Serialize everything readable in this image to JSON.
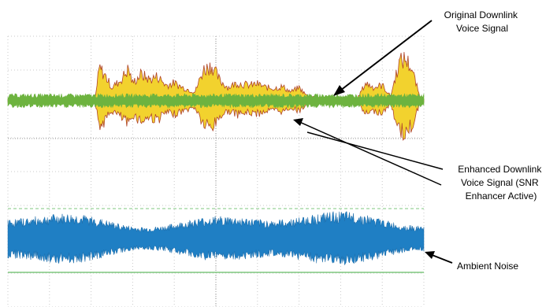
{
  "chart_data": {
    "type": "line",
    "title": "",
    "xlabel": "",
    "ylabel": "",
    "grid": true,
    "grid_divisions": {
      "x": 10,
      "y": 8
    },
    "annotations": [
      {
        "id": "orig",
        "lines": [
          "Original Downlink",
          "Voice Signal"
        ]
      },
      {
        "id": "enh",
        "lines": [
          "Enhanced Downlink",
          "Voice Signal (SNR",
          "Enhancer Active)"
        ]
      },
      {
        "id": "noise",
        "lines": [
          "Ambient Noise"
        ]
      }
    ],
    "series": [
      {
        "name": "Original Downlink Voice Signal",
        "color": "#f2d22e",
        "edge_color": "#b0452a",
        "envelope": [
          [
            0.0,
            0.03
          ],
          [
            0.1,
            0.04
          ],
          [
            0.21,
            0.06
          ],
          [
            0.22,
            0.75
          ],
          [
            0.235,
            0.55
          ],
          [
            0.25,
            0.3
          ],
          [
            0.27,
            0.45
          ],
          [
            0.29,
            0.72
          ],
          [
            0.3,
            0.4
          ],
          [
            0.32,
            0.6
          ],
          [
            0.34,
            0.48
          ],
          [
            0.36,
            0.55
          ],
          [
            0.38,
            0.35
          ],
          [
            0.4,
            0.4
          ],
          [
            0.42,
            0.3
          ],
          [
            0.45,
            0.2
          ],
          [
            0.47,
            0.7
          ],
          [
            0.49,
            0.8
          ],
          [
            0.51,
            0.45
          ],
          [
            0.53,
            0.3
          ],
          [
            0.55,
            0.4
          ],
          [
            0.58,
            0.35
          ],
          [
            0.6,
            0.38
          ],
          [
            0.62,
            0.3
          ],
          [
            0.64,
            0.28
          ],
          [
            0.66,
            0.32
          ],
          [
            0.68,
            0.2
          ],
          [
            0.7,
            0.3
          ],
          [
            0.72,
            0.1
          ],
          [
            0.8,
            0.05
          ],
          [
            0.84,
            0.05
          ],
          [
            0.86,
            0.4
          ],
          [
            0.88,
            0.3
          ],
          [
            0.9,
            0.35
          ],
          [
            0.92,
            0.1
          ],
          [
            0.94,
            0.85
          ],
          [
            0.955,
            0.95
          ],
          [
            0.97,
            0.75
          ],
          [
            0.99,
            0.1
          ],
          [
            1.0,
            0.05
          ]
        ]
      },
      {
        "name": "Enhanced Downlink Voice Signal (SNR Enhancer Active)",
        "color": "#6db33f",
        "amplitude": 0.13
      },
      {
        "name": "Ambient Noise",
        "color": "#1f7fc4",
        "amplitude": 0.75
      }
    ]
  }
}
